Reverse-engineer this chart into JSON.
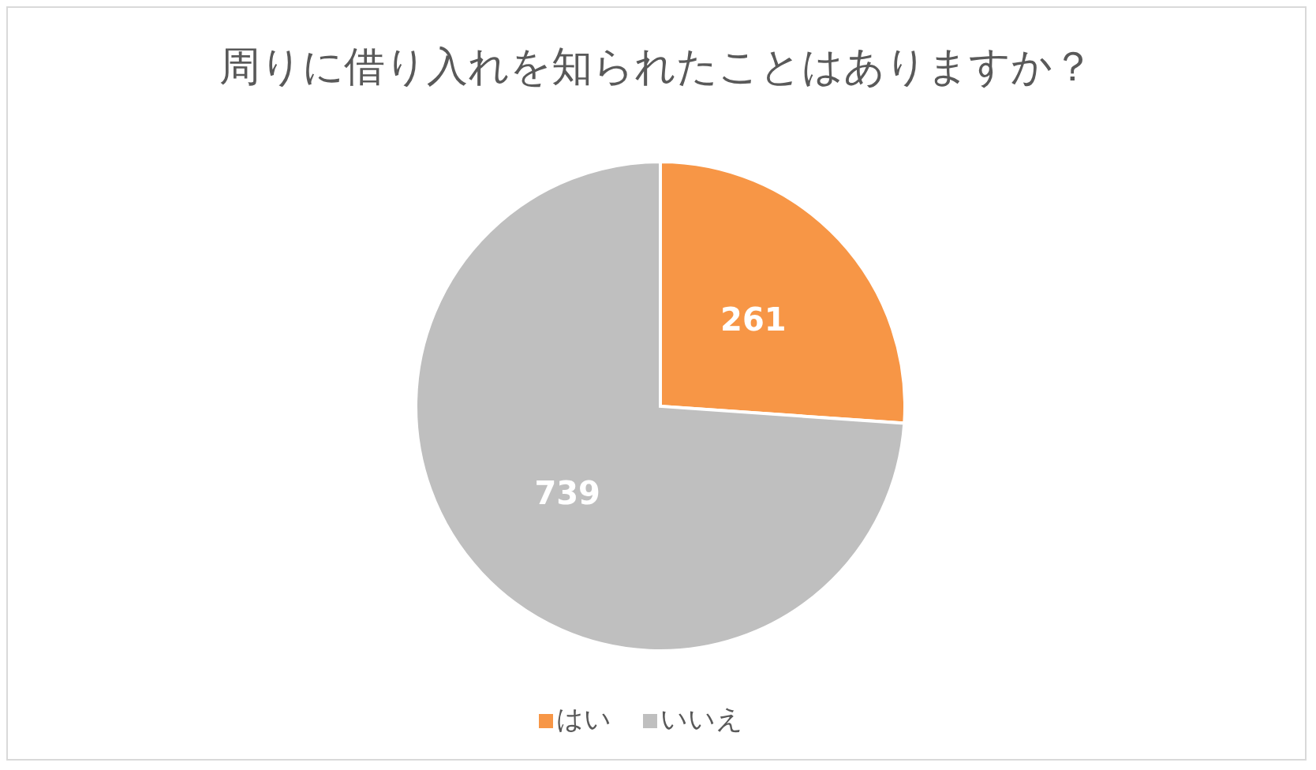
{
  "chart_data": {
    "type": "pie",
    "title": "周りに借り入れを知られたことはありますか？",
    "categories": [
      "はい",
      "いいえ"
    ],
    "values": [
      261,
      739
    ],
    "colors": [
      "#f79646",
      "#bfbfbf"
    ],
    "data_labels": true,
    "legend": "bottom"
  }
}
